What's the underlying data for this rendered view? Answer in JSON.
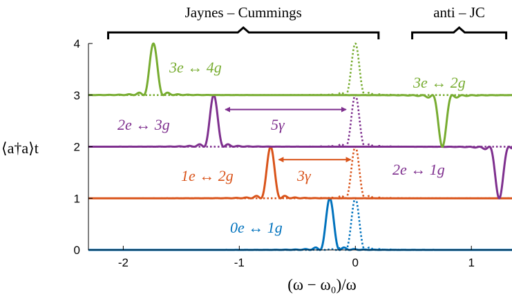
{
  "chart_data": {
    "type": "line",
    "xlabel": "(ω − ω₀)/ω",
    "ylabel": "⟨a†a⟩t",
    "xlim": [
      -2.3,
      1.35
    ],
    "ylim": [
      0,
      4
    ],
    "x_ticks": [
      -2,
      -1,
      0,
      1
    ],
    "x_tick_labels": [
      "-2",
      "-1",
      "0",
      "1"
    ],
    "y_ticks": [
      0,
      1,
      2,
      3,
      4
    ],
    "y_tick_labels": [
      "0",
      "1",
      "2",
      "3",
      "4"
    ],
    "grid": false,
    "series": [
      {
        "color": "#0072BD",
        "style": "solid",
        "baseline": 0,
        "peaks": [
          {
            "x": -0.22,
            "amp": 1.0
          }
        ]
      },
      {
        "color": "#0072BD",
        "style": "dotted",
        "baseline": 0,
        "peaks": [
          {
            "x": 0.0,
            "amp": 1.0
          }
        ]
      },
      {
        "color": "#D95319",
        "style": "solid",
        "baseline": 1,
        "peaks": [
          {
            "x": -0.73,
            "amp": 1.0
          }
        ]
      },
      {
        "color": "#D95319",
        "style": "dotted",
        "baseline": 1,
        "peaks": [
          {
            "x": 0.0,
            "amp": 1.0
          }
        ]
      },
      {
        "color": "#7E2F8E",
        "style": "solid",
        "baseline": 2,
        "peaks": [
          {
            "x": -1.22,
            "amp": 1.0
          },
          {
            "x": 1.24,
            "amp": -1.0
          }
        ]
      },
      {
        "color": "#7E2F8E",
        "style": "dotted",
        "baseline": 2,
        "peaks": [
          {
            "x": 0.0,
            "amp": 1.0
          }
        ]
      },
      {
        "color": "#77AC30",
        "style": "solid",
        "baseline": 3,
        "peaks": [
          {
            "x": -1.74,
            "amp": 1.0
          },
          {
            "x": 0.75,
            "amp": -1.0
          }
        ]
      },
      {
        "color": "#77AC30",
        "style": "dotted",
        "baseline": 3,
        "peaks": [
          {
            "x": 0.0,
            "amp": 1.0
          }
        ]
      }
    ],
    "annotations": [
      {
        "text": "0e ↔ 1g",
        "color": "#0072BD"
      },
      {
        "text": "1e ↔ 2g",
        "color": "#D95319"
      },
      {
        "text": "2e ↔ 3g",
        "color": "#7E2F8E"
      },
      {
        "text": "3e ↔ 4g",
        "color": "#77AC30"
      },
      {
        "text": "3e ↔ 2g",
        "color": "#77AC30"
      },
      {
        "text": "2e ↔ 1g",
        "color": "#7E2F8E"
      },
      {
        "text": "3γ",
        "color": "#D95319"
      },
      {
        "text": "5γ",
        "color": "#7E2F8E"
      }
    ],
    "arrows": [
      {
        "color": "#D95319",
        "from_x": -0.66,
        "to_x": -0.04,
        "y": 1.75,
        "label": "3γ"
      },
      {
        "color": "#7E2F8E",
        "from_x": -1.12,
        "to_x": -0.08,
        "y": 2.72,
        "label": "5γ"
      }
    ],
    "brackets": [
      {
        "label": "Jaynes – Cummings",
        "from_x": -2.13,
        "to_x": 0.2
      },
      {
        "label": "anti – JC",
        "from_x": 0.49,
        "to_x": 1.3
      }
    ]
  }
}
